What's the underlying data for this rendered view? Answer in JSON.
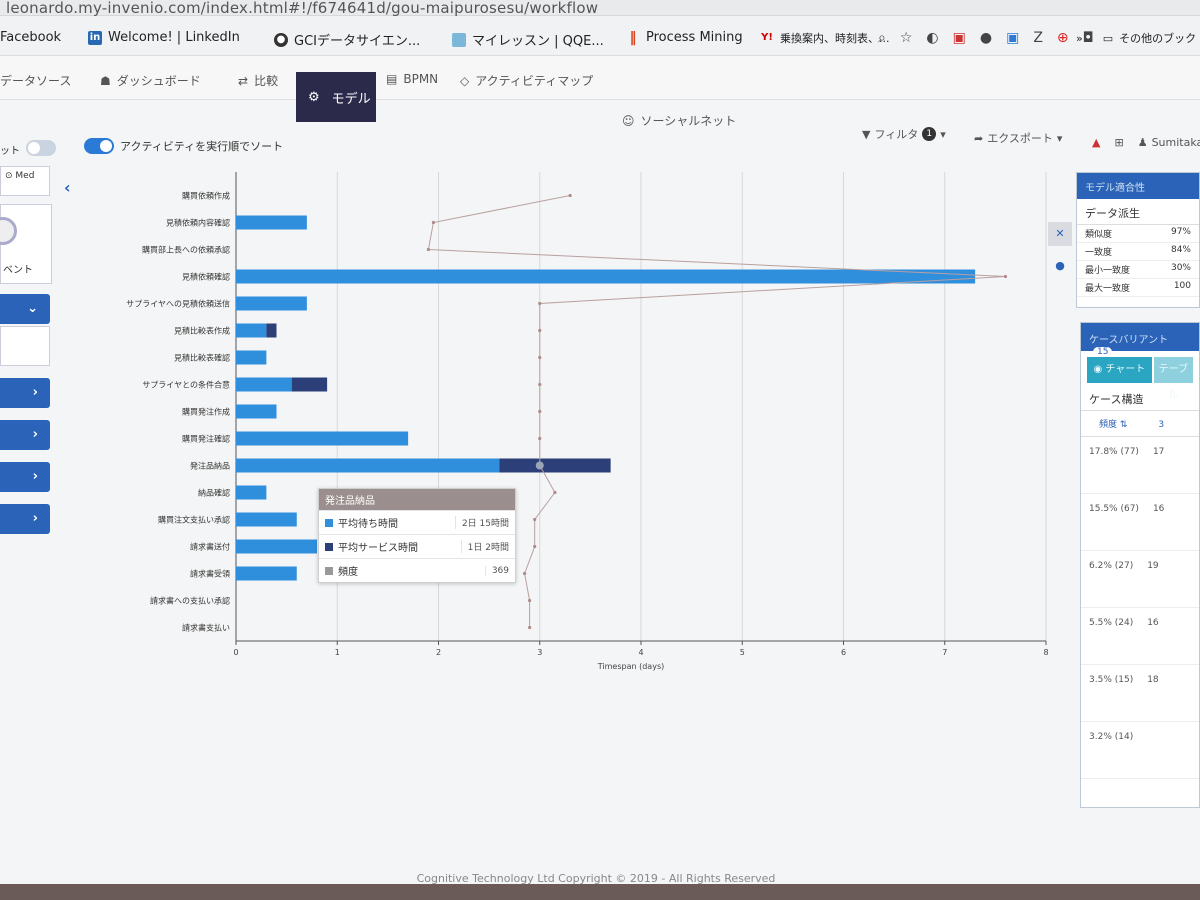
{
  "browser": {
    "url": "leonardo.my-invenio.com/index.html#!/f674641d/gou-maipurosesu/workflow",
    "bookmarks": [
      {
        "label": "Facebook",
        "icon": "facebook-icon"
      },
      {
        "label": "Welcome! | LinkedIn",
        "icon": "linkedin-icon"
      },
      {
        "label": "GCIデータサイエン...",
        "icon": "globe-icon"
      },
      {
        "label": "マイレッスン | QQE...",
        "icon": "bookmark-icon"
      },
      {
        "label": "Process Mining",
        "icon": "bars-icon"
      },
      {
        "label": "乗換案内、時刻表、...",
        "icon": "yahoo-icon"
      }
    ],
    "other_bookmarks": "その他のブック"
  },
  "nav": {
    "items": [
      {
        "label": "データソース",
        "icon": "datasource-icon"
      },
      {
        "label": "ダッシュボード",
        "icon": "dashboard-icon"
      },
      {
        "label": "比較",
        "icon": "compare-icon"
      },
      {
        "label": "モデル",
        "icon": "model-icon",
        "active": true
      },
      {
        "label": "BPMN",
        "icon": "bpmn-icon"
      },
      {
        "label": "アクティビティマップ",
        "icon": "activity-map-icon"
      },
      {
        "label": "ソーシャルネット",
        "icon": "social-icon"
      }
    ],
    "filter_label": "フィルタ",
    "filter_count": "1",
    "export_label": "エクスポート",
    "user_label": "Sumitaka"
  },
  "sort_toggle_label": "アクティビティを実行順でソート",
  "left_panel": {
    "toggle_label": "ット",
    "median_label": "Med",
    "event_label": "ベント"
  },
  "chart_data": {
    "type": "bar",
    "orientation": "horizontal",
    "stacked": true,
    "categories": [
      "購買依頼作成",
      "見積依頼内容確認",
      "購買部上長への依頼承認",
      "見積依頼確認",
      "サプライヤへの見積依頼送信",
      "見積比較表作成",
      "見積比較表確認",
      "サプライヤとの条件合意",
      "購買発注作成",
      "購買発注確認",
      "発注品納品",
      "納品確認",
      "購買注文支払い承認",
      "請求書送付",
      "請求書受領",
      "請求書への支払い承認",
      "請求書支払い"
    ],
    "series": [
      {
        "name": "平均待ち時間",
        "color": "#2f8fdc",
        "values": [
          0,
          0.7,
          0,
          7.3,
          0.7,
          0.3,
          0.3,
          0.55,
          0.4,
          1.7,
          2.6,
          0.3,
          0.6,
          0.8,
          0.6,
          0,
          0
        ]
      },
      {
        "name": "平均サービス時間",
        "color": "#2d3f78",
        "values": [
          0,
          0,
          0,
          0,
          0,
          0.1,
          0,
          0.35,
          0,
          0,
          1.1,
          0,
          0,
          0,
          0,
          0,
          0
        ]
      }
    ],
    "frequency_line": {
      "name": "頻度",
      "x": [
        3.3,
        1.95,
        1.9,
        7.6,
        3.0,
        3.0,
        3.0,
        3.0,
        3.0,
        3.0,
        3.0,
        3.15,
        2.95,
        2.95,
        2.85,
        2.9,
        2.9
      ]
    },
    "x_axis": {
      "label": "Timespan (days)",
      "min": 0,
      "max": 8,
      "ticks": [
        0,
        1,
        2,
        3,
        4,
        5,
        6,
        7,
        8
      ]
    },
    "grid": true
  },
  "tooltip": {
    "title": "発注品納品",
    "rows": [
      {
        "label": "平均待ち時間",
        "value": "2日 15時間",
        "color": "#2f8fdc"
      },
      {
        "label": "平均サービス時間",
        "value": "1日 2時間",
        "color": "#2d3f78"
      },
      {
        "label": "頻度",
        "value": "369",
        "color": "#999999"
      }
    ]
  },
  "model_fit": {
    "title": "モデル適合性",
    "subtitle": "データ派生",
    "rows": [
      {
        "label": "類似度",
        "value": "97%"
      },
      {
        "label": "一致度",
        "value": "84%"
      },
      {
        "label": "最小一致度",
        "value": "30%"
      },
      {
        "label": "最大一致度",
        "value": "100"
      }
    ]
  },
  "case_variants": {
    "title": "ケースバリアント",
    "badge": "15",
    "tab_a": "チャート",
    "tab_b": "テーブル",
    "subtitle": "ケース構造",
    "col_freq": "頻度",
    "col_other": "3",
    "rows": [
      {
        "freq": "17.8% (77)",
        "other": "17"
      },
      {
        "freq": "15.5% (67)",
        "other": "16"
      },
      {
        "freq": "6.2% (27)",
        "other": "19"
      },
      {
        "freq": "5.5% (24)",
        "other": "16"
      },
      {
        "freq": "3.5% (15)",
        "other": "18"
      },
      {
        "freq": "3.2% (14)",
        "other": ""
      }
    ]
  },
  "footer": "Cognitive Technology Ltd Copyright © 2019 - All Rights Reserved"
}
